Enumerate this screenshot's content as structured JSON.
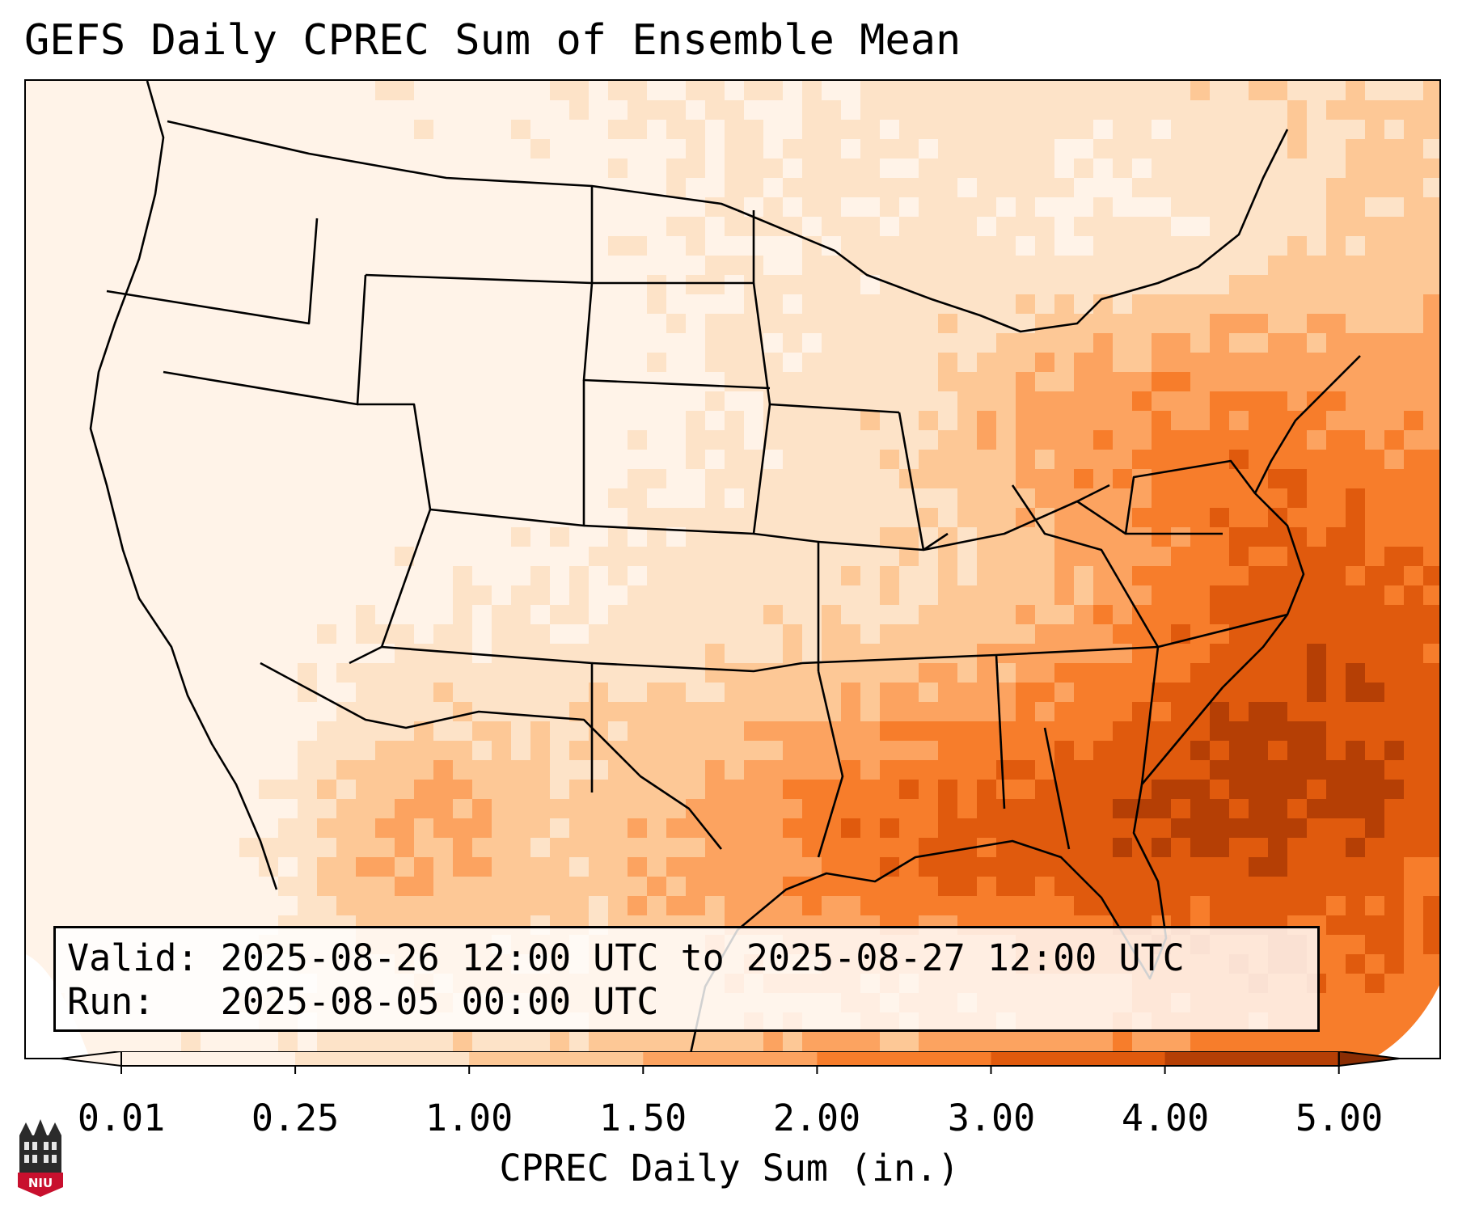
{
  "title": "GEFS Daily CPREC Sum of Ensemble Mean",
  "info": {
    "valid_label": "Valid:",
    "valid_value": "2025-08-26 12:00 UTC to 2025-08-27 12:00 UTC",
    "run_label": "Run:",
    "run_value": "2025-08-05 00:00 UTC"
  },
  "colorbar": {
    "label": "CPREC Daily Sum (in.)",
    "ticks": [
      "0.01",
      "0.25",
      "1.00",
      "1.50",
      "2.00",
      "3.00",
      "4.00",
      "5.00"
    ],
    "colors": [
      "#fff3e8",
      "#fde3c8",
      "#fdc896",
      "#fca360",
      "#f77d2b",
      "#e05a0d",
      "#b53f05",
      "#8a2d03"
    ],
    "extend": "both"
  },
  "logo": {
    "text": "NIU",
    "accent": "#c8102e"
  },
  "map": {
    "region": "Contiguous United States",
    "color_scale": [
      "#fff3e8",
      "#fde3c8",
      "#fdc896",
      "#fca360",
      "#f77d2b",
      "#e05a0d",
      "#b53f05",
      "#8a2d03"
    ]
  }
}
